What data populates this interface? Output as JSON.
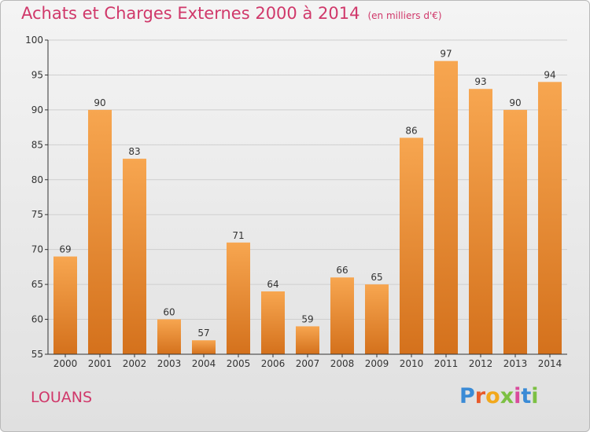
{
  "header": {
    "title": "Achats et Charges Externes 2000 à 2014",
    "subtitle": "(en milliers d'€)"
  },
  "commune": "LOUANS",
  "logo": {
    "text": "Proxiti",
    "letters": [
      "P",
      "r",
      "o",
      "x",
      "i",
      "t",
      "i"
    ]
  },
  "colors": {
    "title": "#d0386a",
    "bar_top": "#f7a650",
    "bar_bottom": "#d4711c",
    "axis": "#333333",
    "grid": "#cfcfcf"
  },
  "chart_data": {
    "type": "bar",
    "title": "Achats et Charges Externes 2000 à 2014",
    "subtitle": "(en milliers d'€)",
    "xlabel": "",
    "ylabel": "",
    "categories": [
      "2000",
      "2001",
      "2002",
      "2003",
      "2004",
      "2005",
      "2006",
      "2007",
      "2008",
      "2009",
      "2010",
      "2011",
      "2012",
      "2013",
      "2014"
    ],
    "values": [
      69,
      90,
      83,
      60,
      57,
      71,
      64,
      59,
      66,
      65,
      86,
      97,
      93,
      90,
      94
    ],
    "ylim": [
      55,
      100
    ],
    "yticks": [
      55,
      60,
      65,
      70,
      75,
      80,
      85,
      90,
      95,
      100
    ],
    "grid": true,
    "data_labels": true
  }
}
